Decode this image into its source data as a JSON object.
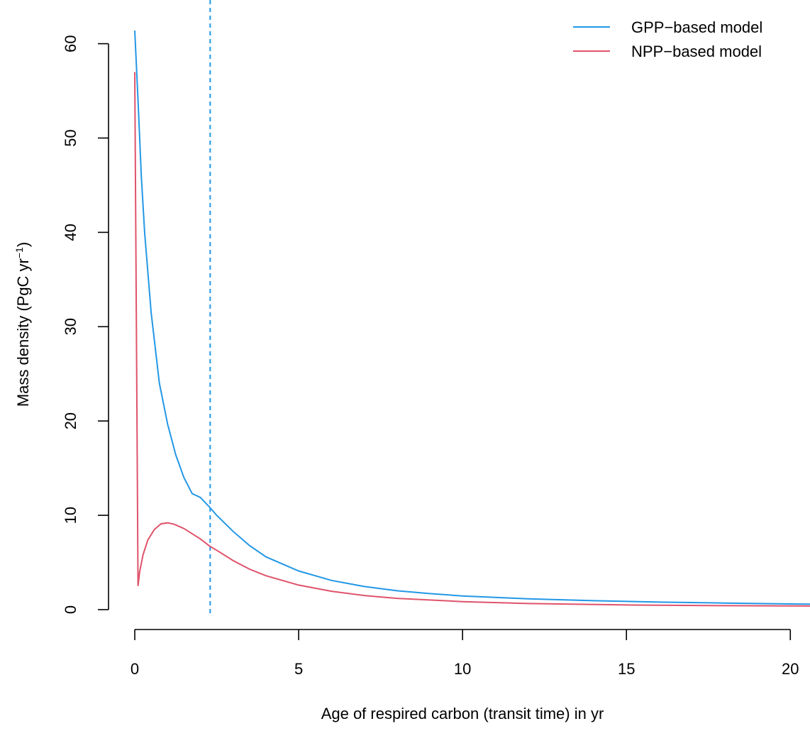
{
  "chart_data": {
    "type": "line",
    "xlabel": "Age of respired carbon (transit time) in yr",
    "ylabel_main": "Mass density (PgC yr",
    "ylabel_sup": "−1",
    "ylabel_close": ")",
    "xlim": [
      0,
      20.6
    ],
    "ylim": [
      0,
      62
    ],
    "x_ticks": [
      0,
      5,
      10,
      15,
      20
    ],
    "y_ticks": [
      0,
      10,
      20,
      30,
      40,
      50,
      60
    ],
    "x_tick_labels": [
      "0",
      "5",
      "10",
      "15",
      "20"
    ],
    "y_tick_labels": [
      "0",
      "10",
      "20",
      "30",
      "40",
      "50",
      "60"
    ],
    "grid": false,
    "legend_position": "top-right",
    "vline": {
      "x": 2.3,
      "color": "#2297E6",
      "style": "dashed"
    },
    "series": [
      {
        "name": "GPP−based model",
        "color": "#2297E6",
        "x": [
          0,
          0.1,
          0.2,
          0.3,
          0.5,
          0.75,
          1.0,
          1.25,
          1.5,
          1.75,
          2.0,
          2.3,
          2.5,
          3.0,
          3.5,
          4.0,
          5.0,
          6.0,
          7.0,
          8.0,
          9.0,
          10.0,
          12.0,
          14.0,
          16.0,
          18.0,
          20.0,
          20.6
        ],
        "y": [
          61.4,
          54.0,
          46.0,
          40.0,
          31.5,
          24.0,
          19.7,
          16.4,
          14.0,
          12.3,
          11.9,
          10.8,
          10.0,
          8.3,
          6.8,
          5.6,
          4.1,
          3.1,
          2.45,
          2.0,
          1.7,
          1.45,
          1.15,
          0.95,
          0.8,
          0.7,
          0.6,
          0.58
        ]
      },
      {
        "name": "NPP−based model",
        "color": "#DF536B",
        "x": [
          0,
          0.05,
          0.1,
          0.15,
          0.25,
          0.4,
          0.6,
          0.8,
          1.0,
          1.2,
          1.5,
          2.0,
          2.3,
          2.5,
          3.0,
          3.5,
          4.0,
          5.0,
          6.0,
          7.0,
          8.0,
          10.0,
          12.0,
          15.0,
          18.0,
          20.6
        ],
        "y": [
          57.0,
          30.0,
          2.5,
          4.0,
          5.8,
          7.4,
          8.5,
          9.1,
          9.2,
          9.05,
          8.6,
          7.5,
          6.7,
          6.3,
          5.2,
          4.3,
          3.6,
          2.6,
          1.95,
          1.5,
          1.2,
          0.85,
          0.65,
          0.5,
          0.42,
          0.38
        ]
      }
    ]
  }
}
